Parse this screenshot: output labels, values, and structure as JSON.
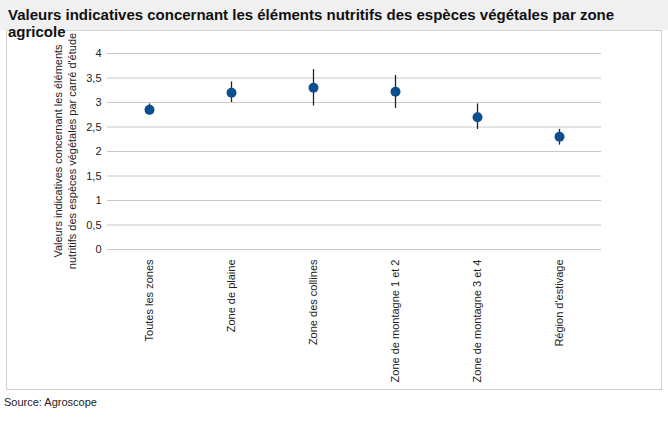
{
  "chart_data": {
    "type": "dot_errorbar",
    "title": "Valeurs indicatives concernant les éléments nutritifs des espèces végétales par zone agricole",
    "y_label": "Valeurs indicatives concernant les éléments nutritifs des espèces végétales par carré d'étude",
    "source": "Source: Agroscope",
    "categories": [
      "Toutes les zones",
      "Zone de plaine",
      "Zone des collines",
      "Zone de montagne 1 et 2",
      "Zone de montagne 3 et 4",
      "Région d'estivage"
    ],
    "values": [
      2.85,
      3.2,
      3.3,
      3.22,
      2.7,
      2.3
    ],
    "lower": [
      2.75,
      3.0,
      2.93,
      2.88,
      2.45,
      2.13
    ],
    "upper": [
      2.97,
      3.42,
      3.67,
      3.55,
      2.97,
      2.45
    ],
    "color": "#0b4f91",
    "ylim": [
      0,
      4
    ],
    "yticks": [
      0,
      {
        "value": 0.5,
        "label": "0,5"
      },
      1,
      {
        "value": 1.5,
        "label": "1,5"
      },
      2,
      {
        "value": 2.5,
        "label": "2,5"
      },
      3,
      {
        "value": 3.5,
        "label": "3,5"
      },
      4
    ],
    "grid": true
  }
}
